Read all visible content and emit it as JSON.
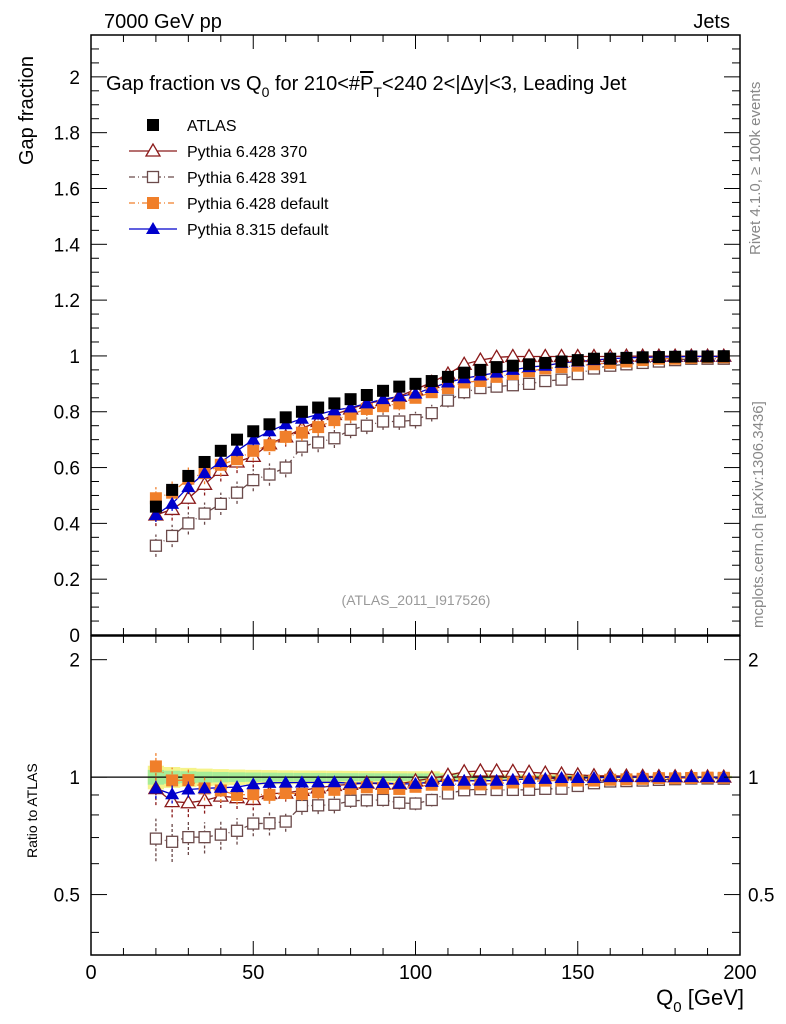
{
  "header": {
    "energy_label": "7000 GeV pp",
    "category_label": "Jets"
  },
  "side_labels": {
    "rivet": "Rivet 4.1.0, ≥ 100k events",
    "mcplots": "mcplots.cern.ch [arXiv:1306.3436]"
  },
  "chart_data": {
    "type": "scatter",
    "title": "Gap fraction vs Q₀ for 210<#P̅ₜ<240  2<|Δy|<3, Leading Jet",
    "title_parts": {
      "lead": "Gap fraction vs Q",
      "sub0": "0",
      "for": " for 210<#",
      "p": "P",
      "sub_t": "T",
      "rest": "<240  2<|Δy|<3, Leading Jet"
    },
    "analysis_label": "(ATLAS_2011_I917526)",
    "xlabel": "Q",
    "xlabel_sub": "0",
    "xlabel_unit": " [GeV]",
    "ylabel": "Gap fraction",
    "ratio_ylabel": "Ratio to ATLAS",
    "xlim": [
      0,
      200
    ],
    "ylim": [
      0,
      2.15
    ],
    "ratio_ylim": [
      0.35,
      2.3
    ],
    "ratio_scale": "log",
    "x_ticks": [
      "0",
      "50",
      "100",
      "150",
      "200"
    ],
    "y_ticks": [
      "0",
      "0.2",
      "0.4",
      "0.6",
      "0.8",
      "1",
      "1.2",
      "1.4",
      "1.6",
      "1.8",
      "2"
    ],
    "ratio_ticks": [
      "0.5",
      "1",
      "2"
    ],
    "x": [
      20,
      25,
      30,
      35,
      40,
      45,
      50,
      55,
      60,
      65,
      70,
      75,
      80,
      85,
      90,
      95,
      100,
      105,
      110,
      115,
      120,
      125,
      130,
      135,
      140,
      145,
      150,
      155,
      160,
      165,
      170,
      175,
      180,
      185,
      190,
      195
    ],
    "series": [
      {
        "name": "ATLAS",
        "color": "#000000",
        "marker": "square-filled",
        "values": [
          0.46,
          0.52,
          0.57,
          0.62,
          0.66,
          0.7,
          0.73,
          0.755,
          0.78,
          0.8,
          0.815,
          0.83,
          0.845,
          0.86,
          0.875,
          0.89,
          0.9,
          0.91,
          0.925,
          0.94,
          0.95,
          0.96,
          0.965,
          0.97,
          0.975,
          0.98,
          0.985,
          0.99,
          0.99,
          0.993,
          0.995,
          0.996,
          0.997,
          0.998,
          0.998,
          0.999
        ],
        "errors": [
          0.02,
          0.02,
          0.02,
          0.02,
          0.02,
          0.02,
          0.02,
          0.02,
          0.02,
          0.02,
          0.02,
          0.02,
          0.02,
          0.02,
          0.02,
          0.02,
          0.02,
          0.02,
          0.015,
          0.015,
          0.015,
          0.01,
          0.01,
          0.01,
          0.01,
          0.01,
          0.01,
          0.005,
          0.005,
          0.005,
          0.005,
          0.005,
          0.005,
          0.005,
          0.005,
          0.005
        ]
      },
      {
        "name": "Pythia 6.428 370",
        "color": "#8b1a1a",
        "marker": "triangle-open",
        "values": [
          0.43,
          0.45,
          0.49,
          0.54,
          0.59,
          0.62,
          0.64,
          0.685,
          0.71,
          0.74,
          0.765,
          0.79,
          0.81,
          0.83,
          0.84,
          0.855,
          0.88,
          0.905,
          0.935,
          0.97,
          0.985,
          0.995,
          0.998,
          0.998,
          0.998,
          0.998,
          0.998,
          0.998,
          0.998,
          0.999,
          0.999,
          0.999,
          0.999,
          0.999,
          0.999,
          0.999
        ],
        "errors": [
          0.04,
          0.04,
          0.04,
          0.04,
          0.04,
          0.04,
          0.04,
          0.04,
          0.035,
          0.035,
          0.03,
          0.03,
          0.03,
          0.03,
          0.025,
          0.025,
          0.02,
          0.02,
          0.02,
          0.015,
          0.01,
          0.01,
          0.005,
          0.005,
          0.005,
          0.005,
          0.005,
          0.005,
          0.005,
          0.005,
          0.005,
          0.005,
          0.005,
          0.005,
          0.005,
          0.005
        ]
      },
      {
        "name": "Pythia 6.428 391",
        "color": "#6b4a4a",
        "marker": "square-open",
        "values": [
          0.32,
          0.355,
          0.4,
          0.435,
          0.47,
          0.51,
          0.555,
          0.575,
          0.6,
          0.675,
          0.69,
          0.705,
          0.735,
          0.75,
          0.765,
          0.765,
          0.77,
          0.795,
          0.84,
          0.87,
          0.885,
          0.89,
          0.895,
          0.9,
          0.91,
          0.915,
          0.935,
          0.955,
          0.965,
          0.97,
          0.975,
          0.98,
          0.985,
          0.99,
          0.99,
          0.99
        ],
        "errors": [
          0.04,
          0.04,
          0.04,
          0.04,
          0.04,
          0.04,
          0.04,
          0.04,
          0.035,
          0.035,
          0.035,
          0.035,
          0.03,
          0.03,
          0.03,
          0.03,
          0.03,
          0.03,
          0.025,
          0.025,
          0.02,
          0.02,
          0.02,
          0.02,
          0.02,
          0.015,
          0.015,
          0.015,
          0.01,
          0.01,
          0.01,
          0.01,
          0.01,
          0.01,
          0.01,
          0.01
        ]
      },
      {
        "name": "Pythia 6.428 default",
        "color": "#f07f2a",
        "marker": "square-filled",
        "values": [
          0.49,
          0.51,
          0.56,
          0.58,
          0.61,
          0.63,
          0.66,
          0.68,
          0.71,
          0.725,
          0.745,
          0.77,
          0.79,
          0.81,
          0.82,
          0.83,
          0.85,
          0.87,
          0.885,
          0.905,
          0.91,
          0.925,
          0.935,
          0.945,
          0.955,
          0.96,
          0.965,
          0.97,
          0.975,
          0.98,
          0.985,
          0.99,
          0.99,
          0.993,
          0.995,
          0.995
        ],
        "errors": [
          0.04,
          0.04,
          0.04,
          0.04,
          0.04,
          0.035,
          0.035,
          0.035,
          0.03,
          0.03,
          0.03,
          0.03,
          0.03,
          0.025,
          0.025,
          0.025,
          0.02,
          0.02,
          0.02,
          0.02,
          0.015,
          0.015,
          0.015,
          0.01,
          0.01,
          0.01,
          0.01,
          0.01,
          0.01,
          0.005,
          0.005,
          0.005,
          0.005,
          0.005,
          0.005,
          0.005
        ]
      },
      {
        "name": "Pythia 8.315 default",
        "color": "#0000cc",
        "marker": "triangle-filled",
        "values": [
          0.43,
          0.47,
          0.53,
          0.58,
          0.62,
          0.66,
          0.7,
          0.73,
          0.755,
          0.775,
          0.79,
          0.805,
          0.815,
          0.83,
          0.845,
          0.855,
          0.865,
          0.885,
          0.905,
          0.92,
          0.93,
          0.94,
          0.95,
          0.96,
          0.965,
          0.975,
          0.98,
          0.985,
          0.99,
          0.993,
          0.995,
          0.996,
          0.997,
          0.998,
          0.998,
          0.998
        ],
        "errors": [
          0.025,
          0.025,
          0.025,
          0.02,
          0.02,
          0.02,
          0.02,
          0.02,
          0.02,
          0.015,
          0.015,
          0.015,
          0.015,
          0.015,
          0.015,
          0.015,
          0.01,
          0.01,
          0.01,
          0.01,
          0.01,
          0.01,
          0.01,
          0.01,
          0.01,
          0.005,
          0.005,
          0.005,
          0.005,
          0.005,
          0.005,
          0.005,
          0.005,
          0.005,
          0.005,
          0.005
        ]
      }
    ]
  }
}
